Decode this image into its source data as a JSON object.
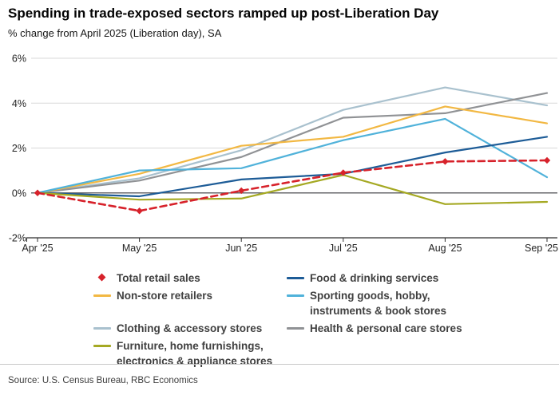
{
  "header": {
    "title": "Spending in trade-exposed sectors ramped up post-Liberation Day",
    "subtitle": "% change from April 2025 (Liberation day), SA"
  },
  "chart_data": {
    "type": "line",
    "x": [
      "Apr '25",
      "May '25",
      "Jun '25",
      "Jul '25",
      "Aug '25",
      "Sep '25"
    ],
    "ylim": [
      -2,
      6
    ],
    "yticks": [
      {
        "value": 6,
        "label": "6%"
      },
      {
        "value": 4,
        "label": "4%"
      },
      {
        "value": 2,
        "label": "2%"
      },
      {
        "value": 0,
        "label": "0%"
      },
      {
        "value": -2,
        "label": "-2%"
      }
    ],
    "grid": "horizontal",
    "legend_position": "bottom",
    "legend_columns": [
      [
        0,
        1,
        2,
        3
      ],
      [
        4,
        5,
        6
      ]
    ],
    "series": [
      {
        "name": "Total retail sales",
        "legend_label": "Total retail sales",
        "color": "#d7222b",
        "line_style": "dashed",
        "marker": "diamond",
        "values": [
          0,
          -0.8,
          0.1,
          0.9,
          1.4,
          1.45
        ]
      },
      {
        "name": "Non-store retailers",
        "legend_label": "Non-store retailers",
        "color": "#f2b843",
        "line_style": "solid",
        "marker": "none",
        "values": [
          0,
          0.85,
          2.1,
          2.5,
          3.85,
          3.1
        ]
      },
      {
        "name": "Clothing & accessory stores",
        "legend_label": "Clothing & accessory stores",
        "color": "#a9c1ce",
        "line_style": "solid",
        "marker": "none",
        "values": [
          0,
          0.65,
          1.9,
          3.7,
          4.7,
          3.9
        ]
      },
      {
        "name": "Furniture, home furnishings, electronics & appliance stores",
        "legend_label": "Furniture, home furnishings,\nelectronics & appliance stores",
        "color": "#a5a923",
        "line_style": "solid",
        "marker": "none",
        "values": [
          0,
          -0.3,
          -0.25,
          0.8,
          -0.5,
          -0.4
        ]
      },
      {
        "name": "Food & drinking services",
        "legend_label": "Food & drinking services",
        "color": "#1d5c97",
        "line_style": "solid",
        "marker": "none",
        "values": [
          0,
          -0.15,
          0.6,
          0.85,
          1.8,
          2.5
        ]
      },
      {
        "name": "Sporting goods, hobby, instruments & book stores",
        "legend_label": "Sporting goods, hobby,\ninstruments & book stores",
        "color": "#50b2da",
        "line_style": "solid",
        "marker": "none",
        "values": [
          0,
          1.0,
          1.1,
          2.35,
          3.3,
          0.7
        ]
      },
      {
        "name": "Health & personal care stores",
        "legend_label": "Health & personal care stores",
        "color": "#909295",
        "line_style": "solid",
        "marker": "none",
        "values": [
          0,
          0.55,
          1.6,
          3.35,
          3.55,
          4.45
        ]
      }
    ]
  },
  "footer": {
    "source": "Source: U.S. Census Bureau, RBC Economics"
  }
}
